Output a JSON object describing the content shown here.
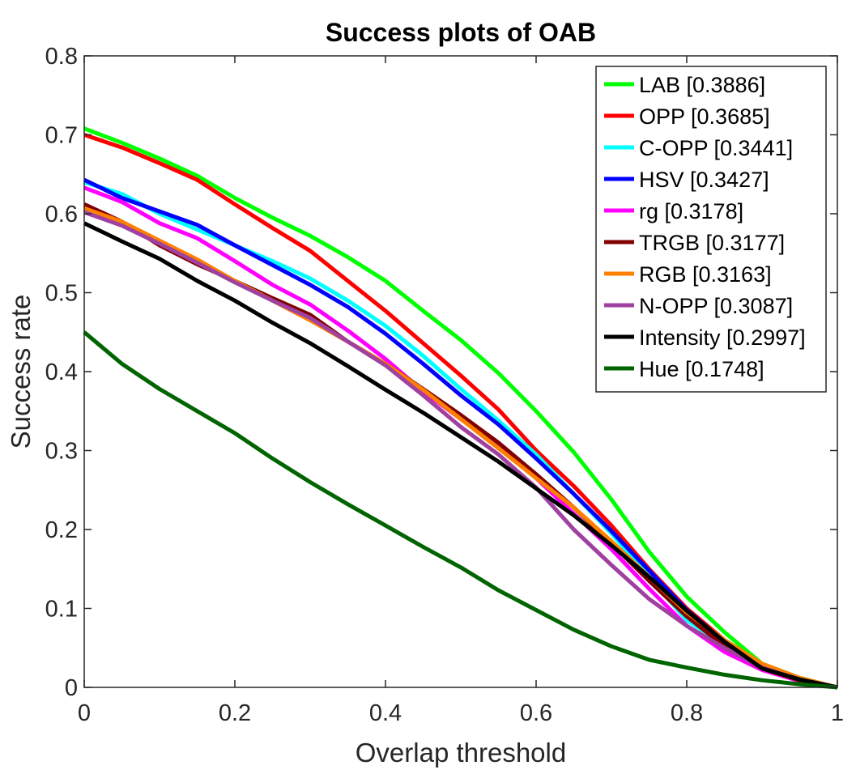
{
  "chart_data": {
    "type": "line",
    "title": "Success plots of OAB",
    "xlabel": "Overlap threshold",
    "ylabel": "Success rate",
    "xlim": [
      0,
      1
    ],
    "ylim": [
      0,
      0.8
    ],
    "xticks": [
      0,
      0.2,
      0.4,
      0.6,
      0.8,
      1
    ],
    "xtick_labels": [
      "0",
      "0.2",
      "0.4",
      "0.6",
      "0.8",
      "1"
    ],
    "yticks": [
      0,
      0.1,
      0.2,
      0.3,
      0.4,
      0.5,
      0.6,
      0.7,
      0.8
    ],
    "ytick_labels": [
      "0",
      "0.1",
      "0.2",
      "0.3",
      "0.4",
      "0.5",
      "0.6",
      "0.7",
      "0.8"
    ],
    "grid": false,
    "legend_position": "top-right",
    "x": [
      0,
      0.05,
      0.1,
      0.15,
      0.2,
      0.25,
      0.3,
      0.35,
      0.4,
      0.45,
      0.5,
      0.55,
      0.6,
      0.65,
      0.7,
      0.75,
      0.8,
      0.85,
      0.9,
      0.95,
      1.0
    ],
    "series": [
      {
        "name": "LAB [0.3886]",
        "color": "#00ff00",
        "values": [
          0.708,
          0.69,
          0.67,
          0.648,
          0.62,
          0.595,
          0.572,
          0.545,
          0.515,
          0.477,
          0.44,
          0.398,
          0.35,
          0.298,
          0.238,
          0.172,
          0.115,
          0.07,
          0.03,
          0.012,
          0.0
        ]
      },
      {
        "name": "OPP [0.3685]",
        "color": "#ff0000",
        "values": [
          0.7,
          0.684,
          0.664,
          0.643,
          0.612,
          0.582,
          0.553,
          0.515,
          0.477,
          0.436,
          0.395,
          0.352,
          0.3,
          0.255,
          0.205,
          0.15,
          0.1,
          0.06,
          0.028,
          0.01,
          0.0
        ]
      },
      {
        "name": "C-OPP [0.3441]",
        "color": "#00ffff",
        "values": [
          0.64,
          0.625,
          0.6,
          0.58,
          0.56,
          0.54,
          0.518,
          0.49,
          0.458,
          0.42,
          0.378,
          0.338,
          0.295,
          0.245,
          0.195,
          0.14,
          0.085,
          0.055,
          0.025,
          0.01,
          0.0
        ]
      },
      {
        "name": "HSV [0.3427]",
        "color": "#0000ff",
        "values": [
          0.643,
          0.62,
          0.603,
          0.586,
          0.56,
          0.535,
          0.51,
          0.482,
          0.448,
          0.41,
          0.37,
          0.333,
          0.29,
          0.245,
          0.198,
          0.148,
          0.098,
          0.058,
          0.027,
          0.01,
          0.0
        ]
      },
      {
        "name": "rg [0.3178]",
        "color": "#ff00ff",
        "values": [
          0.633,
          0.615,
          0.588,
          0.569,
          0.54,
          0.51,
          0.485,
          0.452,
          0.416,
          0.375,
          0.34,
          0.305,
          0.265,
          0.22,
          0.175,
          0.125,
          0.078,
          0.045,
          0.022,
          0.008,
          0.0
        ]
      },
      {
        "name": "TRGB [0.3177]",
        "color": "#800000",
        "values": [
          0.612,
          0.59,
          0.56,
          0.536,
          0.515,
          0.493,
          0.472,
          0.438,
          0.41,
          0.378,
          0.345,
          0.31,
          0.27,
          0.228,
          0.182,
          0.135,
          0.09,
          0.052,
          0.024,
          0.009,
          0.0
        ]
      },
      {
        "name": "RGB [0.3163]",
        "color": "#ff8000",
        "values": [
          0.607,
          0.59,
          0.566,
          0.542,
          0.515,
          0.49,
          0.465,
          0.438,
          0.41,
          0.377,
          0.34,
          0.303,
          0.265,
          0.228,
          0.185,
          0.14,
          0.095,
          0.06,
          0.03,
          0.012,
          0.0
        ]
      },
      {
        "name": "N-OPP [0.3087]",
        "color": "#a040a0",
        "values": [
          0.602,
          0.585,
          0.562,
          0.538,
          0.513,
          0.49,
          0.468,
          0.438,
          0.408,
          0.37,
          0.33,
          0.295,
          0.253,
          0.2,
          0.155,
          0.112,
          0.078,
          0.05,
          0.025,
          0.01,
          0.0
        ]
      },
      {
        "name": "Intensity [0.2997]",
        "color": "#000000",
        "values": [
          0.588,
          0.565,
          0.543,
          0.515,
          0.49,
          0.462,
          0.436,
          0.407,
          0.377,
          0.348,
          0.317,
          0.286,
          0.252,
          0.218,
          0.18,
          0.14,
          0.097,
          0.058,
          0.024,
          0.01,
          0.0
        ]
      },
      {
        "name": "Hue [0.1748]",
        "color": "#006400",
        "values": [
          0.45,
          0.41,
          0.378,
          0.35,
          0.322,
          0.29,
          0.26,
          0.232,
          0.205,
          0.178,
          0.152,
          0.123,
          0.098,
          0.073,
          0.052,
          0.035,
          0.025,
          0.016,
          0.009,
          0.004,
          0.0
        ]
      }
    ]
  }
}
